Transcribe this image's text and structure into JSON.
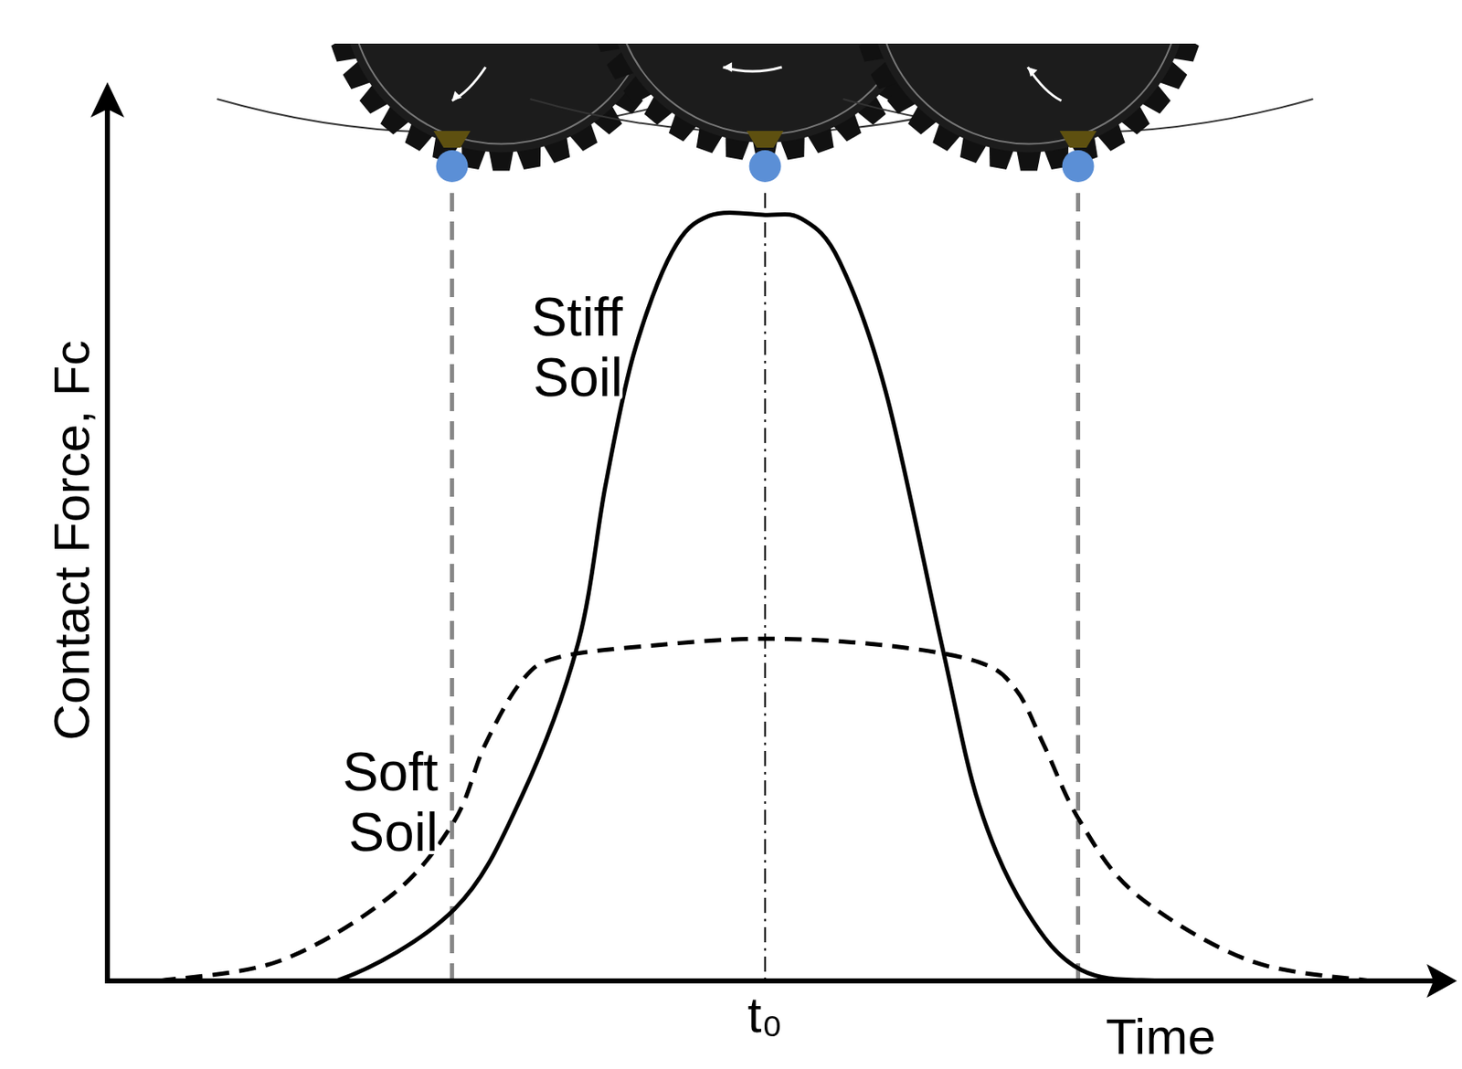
{
  "chart_data": {
    "type": "line",
    "x_label": "Time",
    "y_label": "Contact Force, Fc",
    "xlim": [
      0,
      100
    ],
    "ylim": [
      0,
      100
    ],
    "xticks": [
      {
        "value": 49.5,
        "label": "t₀"
      }
    ],
    "tick_labels": "x",
    "grid": false,
    "series": [
      {
        "name": "Stiff Soil",
        "color": "#000000",
        "line_style": "solid",
        "x": [
          10.0,
          17.2,
          26.1,
          31.2,
          35.4,
          37.5,
          39.6,
          42.5,
          45.3,
          49.5,
          52.3,
          55.1,
          58.6,
          62.8,
          65.6,
          69.1,
          73.3,
          79.6,
          90.0
        ],
        "values": [
          0,
          0,
          8.5,
          22,
          40,
          59,
          74.5,
          86.7,
          91,
          91.1,
          90.6,
          85.6,
          70,
          40,
          21,
          8.5,
          1.3,
          0,
          0
        ]
      },
      {
        "name": "Soft Soil",
        "color": "#000000",
        "line_style": "dashed",
        "x": [
          3.9,
          13.0,
          21.4,
          26.1,
          28.4,
          31.2,
          34.0,
          41.1,
          49.5,
          58.6,
          65.6,
          68.4,
          70.5,
          73.2,
          77.5,
          86.0,
          95.1
        ],
        "values": [
          0,
          2.4,
          10.2,
          19,
          28,
          35.7,
          38.5,
          39.9,
          40.7,
          39.9,
          37.9,
          34.6,
          28,
          19,
          10.2,
          2.4,
          0
        ]
      }
    ]
  }
}
